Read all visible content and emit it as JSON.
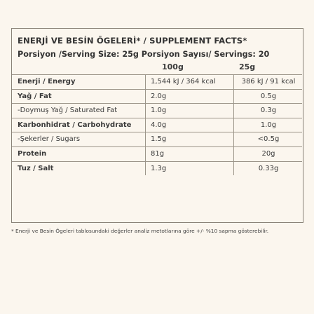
{
  "title": "ENERJİ VE BESİN ÖGELERİ* / SUPPLEMENT FACTS*",
  "serving": "Porsiyon /Serving Size: 25g Porsiyon Sayısı/ Servings: 20",
  "columns": {
    "col1": "100g",
    "col2": "25g"
  },
  "rows": [
    {
      "label": "Enerji / Energy",
      "v100": "1,544 kJ / 364 kcal",
      "v25": "386 kJ / 91 kcal",
      "bold": true
    },
    {
      "label": "Yağ / Fat",
      "v100": "2.0g",
      "v25": "0.5g",
      "bold": true
    },
    {
      "label": "-Doymuş Yağ / Saturated Fat",
      "v100": "1.0g",
      "v25": "0.3g",
      "bold": false
    },
    {
      "label": "Karbonhidrat / Carbohydrate",
      "v100": "4.0g",
      "v25": "1.0g",
      "bold": true
    },
    {
      "label": "-Şekerler / Sugars",
      "v100": "1.5g",
      "v25": "<0.5g",
      "bold": false
    },
    {
      "label": "Protein",
      "v100": "81g",
      "v25": "20g",
      "bold": true
    },
    {
      "label": "Tuz / Salt",
      "v100": "1.3g",
      "v25": "0.33g",
      "bold": true
    }
  ],
  "footnote": "* Enerji ve Besin Ögeleri tablosundaki değerler analiz metotlarına göre +/- %10 sapma gösterebilir."
}
